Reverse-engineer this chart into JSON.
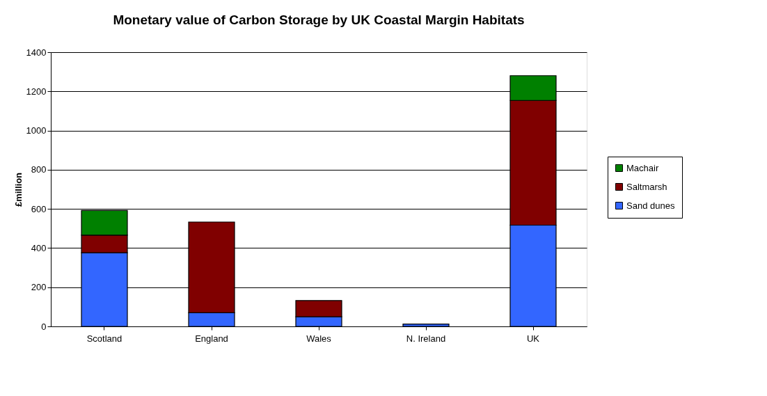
{
  "chart_data": {
    "type": "bar",
    "title": "Monetary value of Carbon Storage by UK Coastal Margin Habitats",
    "ylabel": "£million",
    "categories": [
      "Scotland",
      "England",
      "Wales",
      "N. Ireland",
      "UK"
    ],
    "stacked": true,
    "ylim": [
      0,
      1400
    ],
    "yticks": [
      0,
      200,
      400,
      600,
      800,
      1000,
      1200,
      1400
    ],
    "grid": "y",
    "legend": "right",
    "series": [
      {
        "name": "Sand dunes",
        "color": "#3366ff",
        "values": [
          376,
          70,
          49,
          12,
          517
        ]
      },
      {
        "name": "Saltmarsh",
        "color": "#800000",
        "values": [
          90,
          463,
          83,
          null,
          637
        ]
      },
      {
        "name": "Machair",
        "color": "#008000",
        "values": [
          126,
          null,
          null,
          null,
          126
        ]
      }
    ]
  }
}
